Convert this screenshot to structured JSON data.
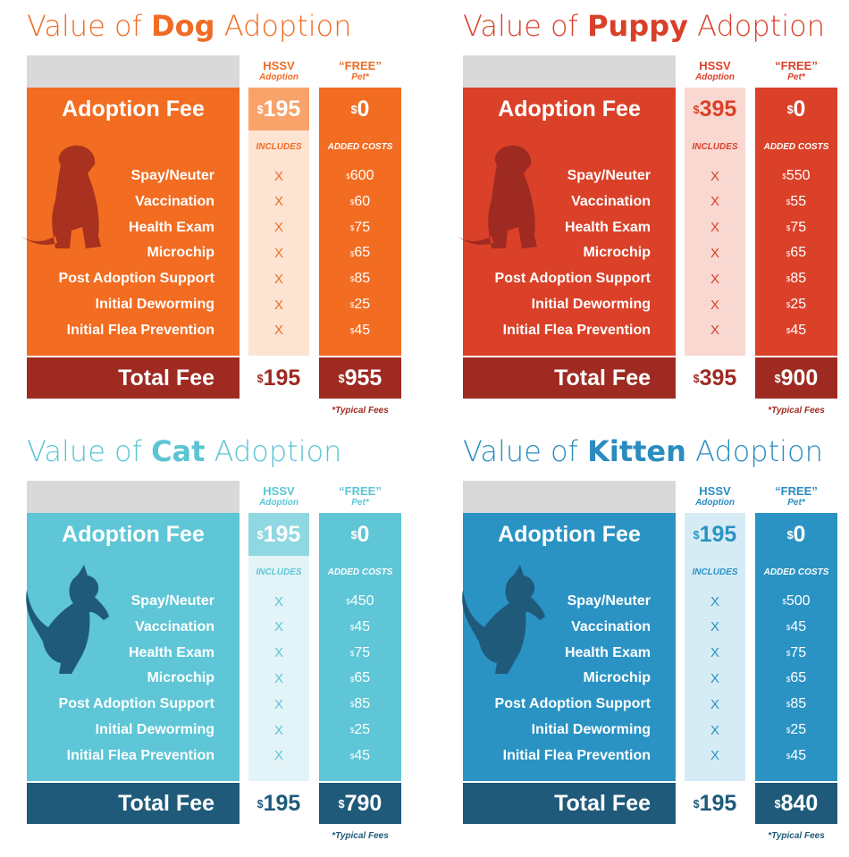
{
  "panels": [
    {
      "title": {
        "prefix": "Value of",
        "animal": "Dog",
        "suffix": "Adoption"
      },
      "columns": {
        "hssv": {
          "name": "HSSV",
          "sub": "Adoption"
        },
        "free": {
          "name": "“FREE”",
          "sub": "Pet*"
        }
      },
      "adoption_fee": {
        "label": "Adoption Fee",
        "hssv": "$195",
        "free": "$0"
      },
      "subheaders": {
        "hssv": "INCLUDES",
        "free": "ADDED COSTS"
      },
      "items": [
        {
          "label": "Spay/Neuter",
          "hssv": "X",
          "free": "$600"
        },
        {
          "label": "Vaccination",
          "hssv": "X",
          "free": "$60"
        },
        {
          "label": "Health Exam",
          "hssv": "X",
          "free": "$75"
        },
        {
          "label": "Microchip",
          "hssv": "X",
          "free": "$65"
        },
        {
          "label": "Post Adoption Support",
          "hssv": "X",
          "free": "$85"
        },
        {
          "label": "Initial Deworming",
          "hssv": "X",
          "free": "$25"
        },
        {
          "label": "Initial Flea Prevention",
          "hssv": "X",
          "free": "$45"
        }
      ],
      "total": {
        "label": "Total Fee",
        "hssv": "$195",
        "free": "$955"
      },
      "footnote": "*Typical Fees"
    },
    {
      "title": {
        "prefix": "Value of",
        "animal": "Puppy",
        "suffix": "Adoption"
      },
      "columns": {
        "hssv": {
          "name": "HSSV",
          "sub": "Adoption"
        },
        "free": {
          "name": "“FREE”",
          "sub": "Pet*"
        }
      },
      "adoption_fee": {
        "label": "Adoption Fee",
        "hssv": "$395",
        "free": "$0"
      },
      "subheaders": {
        "hssv": "INCLUDES",
        "free": "ADDED COSTS"
      },
      "items": [
        {
          "label": "Spay/Neuter",
          "hssv": "X",
          "free": "$550"
        },
        {
          "label": "Vaccination",
          "hssv": "X",
          "free": "$55"
        },
        {
          "label": "Health Exam",
          "hssv": "X",
          "free": "$75"
        },
        {
          "label": "Microchip",
          "hssv": "X",
          "free": "$65"
        },
        {
          "label": "Post Adoption Support",
          "hssv": "X",
          "free": "$85"
        },
        {
          "label": "Initial Deworming",
          "hssv": "X",
          "free": "$25"
        },
        {
          "label": "Initial Flea Prevention",
          "hssv": "X",
          "free": "$45"
        }
      ],
      "total": {
        "label": "Total Fee",
        "hssv": "$395",
        "free": "$900"
      },
      "footnote": "*Typical Fees"
    },
    {
      "title": {
        "prefix": "Value of",
        "animal": "Cat",
        "suffix": "Adoption"
      },
      "columns": {
        "hssv": {
          "name": "HSSV",
          "sub": "Adoption"
        },
        "free": {
          "name": "“FREE”",
          "sub": "Pet*"
        }
      },
      "adoption_fee": {
        "label": "Adoption Fee",
        "hssv": "$195",
        "free": "$0"
      },
      "subheaders": {
        "hssv": "INCLUDES",
        "free": "ADDED COSTS"
      },
      "items": [
        {
          "label": "Spay/Neuter",
          "hssv": "X",
          "free": "$450"
        },
        {
          "label": "Vaccination",
          "hssv": "X",
          "free": "$45"
        },
        {
          "label": "Health Exam",
          "hssv": "X",
          "free": "$75"
        },
        {
          "label": "Microchip",
          "hssv": "X",
          "free": "$65"
        },
        {
          "label": "Post Adoption Support",
          "hssv": "X",
          "free": "$85"
        },
        {
          "label": "Initial Deworming",
          "hssv": "X",
          "free": "$25"
        },
        {
          "label": "Initial Flea Prevention",
          "hssv": "X",
          "free": "$45"
        }
      ],
      "total": {
        "label": "Total Fee",
        "hssv": "$195",
        "free": "$790"
      },
      "footnote": "*Typical Fees"
    },
    {
      "title": {
        "prefix": "Value of",
        "animal": "Kitten",
        "suffix": "Adoption"
      },
      "columns": {
        "hssv": {
          "name": "HSSV",
          "sub": "Adoption"
        },
        "free": {
          "name": "“FREE”",
          "sub": "Pet*"
        }
      },
      "adoption_fee": {
        "label": "Adoption Fee",
        "hssv": "$195",
        "free": "$0"
      },
      "subheaders": {
        "hssv": "INCLUDES",
        "free": "ADDED COSTS"
      },
      "items": [
        {
          "label": "Spay/Neuter",
          "hssv": "X",
          "free": "$500"
        },
        {
          "label": "Vaccination",
          "hssv": "X",
          "free": "$45"
        },
        {
          "label": "Health Exam",
          "hssv": "X",
          "free": "$75"
        },
        {
          "label": "Microchip",
          "hssv": "X",
          "free": "$65"
        },
        {
          "label": "Post Adoption Support",
          "hssv": "X",
          "free": "$85"
        },
        {
          "label": "Initial Deworming",
          "hssv": "X",
          "free": "$25"
        },
        {
          "label": "Initial Flea Prevention",
          "hssv": "X",
          "free": "$45"
        }
      ],
      "total": {
        "label": "Total Fee",
        "hssv": "$195",
        "free": "$840"
      },
      "footnote": "*Typical Fees"
    }
  ]
}
